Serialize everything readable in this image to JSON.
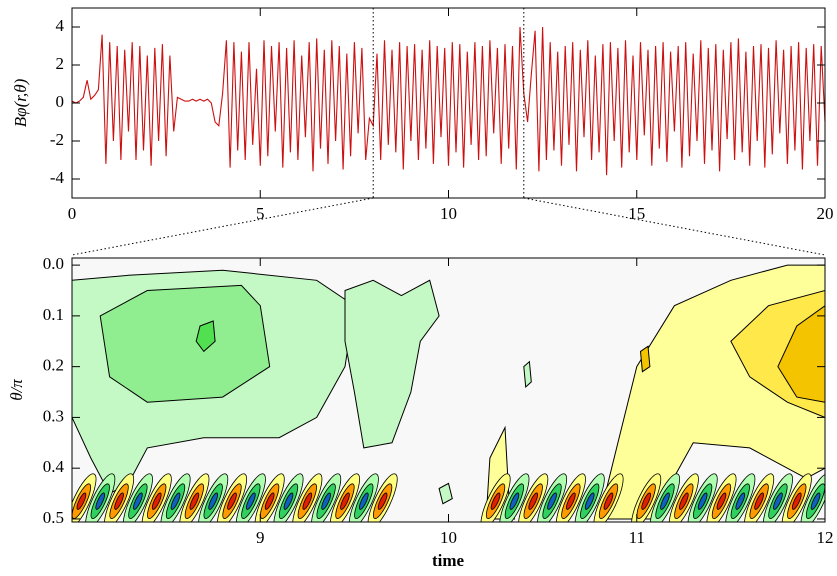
{
  "chart_data": [
    {
      "type": "line",
      "y_label": "Bφ(r,θ)",
      "color": "#cc1010",
      "xlim": [
        0,
        20
      ],
      "xticks": [
        0,
        5,
        10,
        15,
        20
      ],
      "ylim": [
        -5,
        5
      ],
      "yticks": [
        -4,
        -2,
        0,
        2,
        4
      ],
      "x": [
        0,
        0.1,
        0.2,
        0.3,
        0.4,
        0.5,
        0.6,
        0.7,
        0.8,
        0.9,
        1,
        1.1,
        1.2,
        1.3,
        1.4,
        1.5,
        1.6,
        1.7,
        1.8,
        1.9,
        2,
        2.1,
        2.2,
        2.3,
        2.4,
        2.5,
        2.6,
        2.7,
        2.8,
        2.9,
        3,
        3.1,
        3.2,
        3.3,
        3.4,
        3.5,
        3.6,
        3.7,
        3.8,
        3.9,
        4,
        4.1,
        4.2,
        4.3,
        4.4,
        4.5,
        4.6,
        4.7,
        4.8,
        4.9,
        5,
        5.1,
        5.2,
        5.3,
        5.4,
        5.5,
        5.6,
        5.7,
        5.8,
        5.9,
        6,
        6.1,
        6.2,
        6.3,
        6.4,
        6.5,
        6.6,
        6.7,
        6.8,
        6.9,
        7,
        7.1,
        7.2,
        7.3,
        7.4,
        7.5,
        7.6,
        7.7,
        7.8,
        7.9,
        8,
        8.1,
        8.2,
        8.3,
        8.4,
        8.5,
        8.6,
        8.7,
        8.8,
        8.9,
        9,
        9.1,
        9.2,
        9.3,
        9.4,
        9.5,
        9.6,
        9.7,
        9.8,
        9.9,
        10,
        10.1,
        10.2,
        10.3,
        10.4,
        10.5,
        10.6,
        10.7,
        10.8,
        10.9,
        11,
        11.1,
        11.2,
        11.3,
        11.4,
        11.5,
        11.6,
        11.7,
        11.8,
        11.9,
        12,
        12.1,
        12.2,
        12.3,
        12.4,
        12.5,
        12.6,
        12.7,
        12.8,
        12.9,
        13,
        13.1,
        13.2,
        13.3,
        13.4,
        13.5,
        13.6,
        13.7,
        13.8,
        13.9,
        14,
        14.1,
        14.2,
        14.3,
        14.4,
        14.5,
        14.6,
        14.7,
        14.8,
        14.9,
        15,
        15.1,
        15.2,
        15.3,
        15.4,
        15.5,
        15.6,
        15.7,
        15.8,
        15.9,
        16,
        16.1,
        16.2,
        16.3,
        16.4,
        16.5,
        16.6,
        16.7,
        16.8,
        16.9,
        17,
        17.1,
        17.2,
        17.3,
        17.4,
        17.5,
        17.6,
        17.7,
        17.8,
        17.9,
        18,
        18.1,
        18.2,
        18.3,
        18.4,
        18.5,
        18.6,
        18.7,
        18.8,
        18.9,
        19,
        19.1,
        19.2,
        19.3,
        19.4,
        19.5,
        19.6,
        19.7,
        19.8,
        19.9,
        20
      ],
      "values": [
        0.1,
        0.0,
        0.1,
        0.3,
        1.2,
        0.2,
        0.4,
        0.7,
        3.6,
        -3.2,
        3.2,
        -2.0,
        3.0,
        -3.0,
        2.8,
        -1.5,
        3.2,
        -3.0,
        3.0,
        -2.5,
        2.5,
        -3.3,
        2.9,
        -2.0,
        3.1,
        -2.8,
        2.5,
        -1.5,
        0.3,
        0.2,
        0.1,
        0.1,
        0.2,
        0.1,
        0.2,
        0.1,
        0.2,
        0.0,
        -1.0,
        -1.2,
        0.5,
        3.3,
        -3.4,
        3.2,
        -2.5,
        2.7,
        -3.0,
        3.2,
        -2.2,
        1.8,
        -3.3,
        3.3,
        -2.8,
        3.0,
        -1.5,
        3.2,
        -3.4,
        2.9,
        -2.6,
        3.3,
        -3.0,
        2.5,
        -1.8,
        3.2,
        -3.6,
        3.4,
        -2.4,
        2.8,
        -3.2,
        3.3,
        -2.0,
        3.0,
        -3.5,
        2.6,
        -2.8,
        3.2,
        -1.6,
        2.9,
        -3.0,
        -0.8,
        -1.2,
        2.6,
        -3.0,
        3.3,
        -2.2,
        2.8,
        -2.6,
        3.2,
        -3.5,
        3.0,
        -2.0,
        3.1,
        -3.0,
        2.8,
        -2.4,
        3.3,
        -3.2,
        3.0,
        -1.8,
        2.9,
        -3.3,
        3.2,
        -2.6,
        3.1,
        -3.4,
        2.7,
        -2.2,
        3.2,
        -3.0,
        3.0,
        -2.8,
        3.3,
        -1.6,
        2.9,
        -3.2,
        3.1,
        -2.4,
        3.0,
        -3.5,
        4.0,
        0.5,
        -1.0,
        1.5,
        3.8,
        -3.6,
        4.0,
        -3.0,
        3.2,
        -2.5,
        2.7,
        -3.3,
        3.0,
        -2.2,
        3.2,
        -3.6,
        2.8,
        -1.8,
        3.3,
        -3.0,
        2.5,
        -2.6,
        3.1,
        -3.8,
        3.2,
        -2.0,
        2.9,
        -3.4,
        3.3,
        -2.6,
        2.5,
        -3.0,
        3.2,
        -1.7,
        2.8,
        -3.3,
        3.0,
        -2.4,
        3.2,
        -3.1,
        2.7,
        -1.5,
        3.0,
        -3.4,
        3.2,
        -2.8,
        2.6,
        -2.0,
        3.3,
        -3.2,
        2.9,
        -2.5,
        3.1,
        -3.6,
        2.8,
        -1.9,
        3.2,
        -3.0,
        3.4,
        -2.6,
        2.7,
        -3.3,
        3.0,
        -2.0,
        3.1,
        -3.4,
        2.9,
        -2.7,
        3.3,
        -1.6,
        2.8,
        -3.2,
        3.0,
        -2.5,
        3.2,
        -3.5,
        2.9,
        -2.0,
        3.1,
        -3.3,
        3.0,
        -1.0
      ]
    },
    {
      "type": "contour",
      "x_label": "time",
      "y_label": "θ/π",
      "xlim": [
        8,
        12
      ],
      "xticks": [
        9,
        10,
        11,
        12
      ],
      "ylim": [
        0.506,
        -0.014
      ],
      "yticks": [
        {
          "value": 0,
          "label": "0.0"
        },
        {
          "value": 0.1,
          "label": "0.1"
        },
        {
          "value": 0.2,
          "label": "0.2"
        },
        {
          "value": 0.3,
          "label": "0.3"
        },
        {
          "value": 0.4,
          "label": "0.4"
        },
        {
          "value": 0.5,
          "label": "0.5"
        }
      ],
      "background": "#f8f8f8",
      "regions": [
        {
          "color": "#c4f8c4",
          "points": [
            [
              8.0,
              0.03
            ],
            [
              8.3,
              0.02
            ],
            [
              8.8,
              0.01
            ],
            [
              9.3,
              0.03
            ],
            [
              9.5,
              0.08
            ],
            [
              9.45,
              0.2
            ],
            [
              9.3,
              0.3
            ],
            [
              9.1,
              0.34
            ],
            [
              8.7,
              0.34
            ],
            [
              8.4,
              0.36
            ],
            [
              8.3,
              0.43
            ],
            [
              8.2,
              0.45
            ],
            [
              8.1,
              0.38
            ],
            [
              8.0,
              0.3
            ]
          ]
        },
        {
          "color": "#90ee90",
          "points": [
            [
              8.15,
              0.1
            ],
            [
              8.4,
              0.05
            ],
            [
              8.9,
              0.04
            ],
            [
              9.0,
              0.08
            ],
            [
              9.05,
              0.2
            ],
            [
              8.8,
              0.26
            ],
            [
              8.4,
              0.27
            ],
            [
              8.2,
              0.22
            ]
          ]
        },
        {
          "color": "#50e050",
          "points": [
            [
              8.68,
              0.12
            ],
            [
              8.75,
              0.11
            ],
            [
              8.76,
              0.15
            ],
            [
              8.7,
              0.17
            ],
            [
              8.66,
              0.15
            ]
          ]
        },
        {
          "color": "#c4f8c4",
          "points": [
            [
              9.45,
              0.05
            ],
            [
              9.6,
              0.03
            ],
            [
              9.75,
              0.06
            ],
            [
              9.9,
              0.03
            ],
            [
              9.95,
              0.1
            ],
            [
              9.85,
              0.15
            ],
            [
              9.8,
              0.25
            ],
            [
              9.7,
              0.35
            ],
            [
              9.55,
              0.36
            ],
            [
              9.5,
              0.25
            ],
            [
              9.45,
              0.15
            ]
          ]
        },
        {
          "color": "#c4f8c4",
          "points": [
            [
              9.95,
              0.44
            ],
            [
              10.0,
              0.43
            ],
            [
              10.02,
              0.46
            ],
            [
              9.97,
              0.47
            ]
          ]
        },
        {
          "color": "#c4f8c4",
          "points": [
            [
              10.4,
              0.2
            ],
            [
              10.43,
              0.19
            ],
            [
              10.44,
              0.23
            ],
            [
              10.41,
              0.24
            ]
          ]
        },
        {
          "color": "#ffff99",
          "points": [
            [
              10.8,
              0.5
            ],
            [
              10.9,
              0.35
            ],
            [
              11.0,
              0.2
            ],
            [
              11.2,
              0.08
            ],
            [
              11.5,
              0.03
            ],
            [
              11.8,
              0.0
            ],
            [
              12.0,
              0.0
            ],
            [
              12.0,
              0.4
            ],
            [
              11.9,
              0.42
            ],
            [
              11.6,
              0.36
            ],
            [
              11.3,
              0.35
            ],
            [
              11.15,
              0.45
            ],
            [
              11.1,
              0.5
            ]
          ]
        },
        {
          "color": "#ffff99",
          "points": [
            [
              10.2,
              0.5
            ],
            [
              10.22,
              0.38
            ],
            [
              10.3,
              0.32
            ],
            [
              10.32,
              0.45
            ],
            [
              10.35,
              0.5
            ]
          ]
        },
        {
          "color": "#ffe84a",
          "points": [
            [
              11.5,
              0.15
            ],
            [
              11.7,
              0.08
            ],
            [
              12.0,
              0.05
            ],
            [
              12.0,
              0.3
            ],
            [
              11.8,
              0.27
            ],
            [
              11.6,
              0.22
            ]
          ]
        },
        {
          "color": "#f5c400",
          "points": [
            [
              11.75,
              0.2
            ],
            [
              11.85,
              0.12
            ],
            [
              12.0,
              0.08
            ],
            [
              12.0,
              0.27
            ],
            [
              11.85,
              0.26
            ]
          ]
        },
        {
          "color": "#f5c400",
          "points": [
            [
              11.02,
              0.17
            ],
            [
              11.06,
              0.16
            ],
            [
              11.07,
              0.2
            ],
            [
              11.03,
              0.21
            ]
          ]
        }
      ],
      "stripe_theta": 0.465,
      "palettes": {
        "warm": [
          "#ffff80",
          "#ff9900",
          "#e02000"
        ],
        "cool": [
          "#b0ffb0",
          "#30d060",
          "#1060c0"
        ]
      },
      "stripes": [
        [
          8.05,
          "warm"
        ],
        [
          8.15,
          "cool"
        ],
        [
          8.25,
          "warm"
        ],
        [
          8.35,
          "cool"
        ],
        [
          8.45,
          "warm"
        ],
        [
          8.55,
          "cool"
        ],
        [
          8.65,
          "warm"
        ],
        [
          8.75,
          "cool"
        ],
        [
          8.85,
          "warm"
        ],
        [
          8.95,
          "cool"
        ],
        [
          9.05,
          "warm"
        ],
        [
          9.15,
          "cool"
        ],
        [
          9.25,
          "warm"
        ],
        [
          9.35,
          "cool"
        ],
        [
          9.45,
          "warm"
        ],
        [
          9.55,
          "cool"
        ],
        [
          9.65,
          "warm"
        ],
        [
          10.25,
          "warm"
        ],
        [
          10.35,
          "cool"
        ],
        [
          10.45,
          "warm"
        ],
        [
          10.55,
          "cool"
        ],
        [
          10.65,
          "warm"
        ],
        [
          10.75,
          "cool"
        ],
        [
          10.85,
          "warm"
        ],
        [
          11.05,
          "warm"
        ],
        [
          11.15,
          "cool"
        ],
        [
          11.25,
          "warm"
        ],
        [
          11.35,
          "cool"
        ],
        [
          11.45,
          "warm"
        ],
        [
          11.55,
          "cool"
        ],
        [
          11.65,
          "warm"
        ],
        [
          11.75,
          "cool"
        ],
        [
          11.85,
          "warm"
        ],
        [
          11.95,
          "cool"
        ]
      ]
    }
  ]
}
